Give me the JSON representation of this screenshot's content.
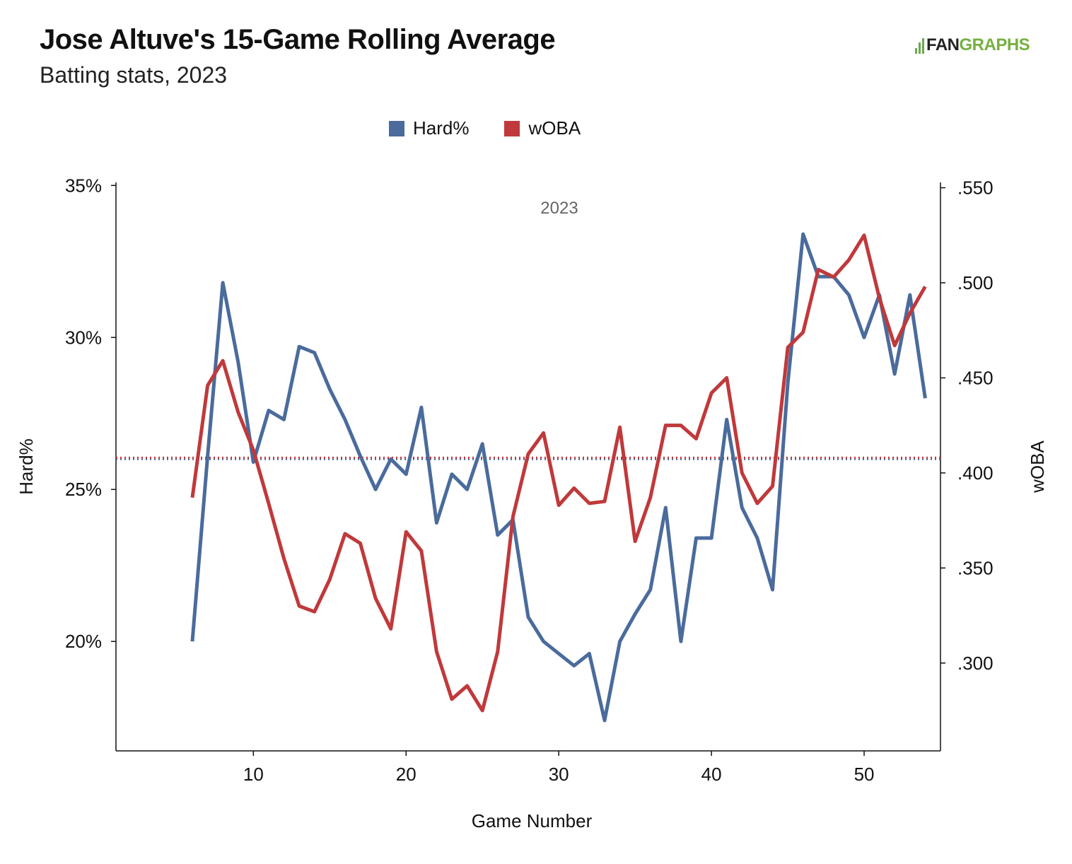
{
  "header": {
    "title": "Jose Altuve's 15-Game Rolling Average",
    "subtitle": "Batting stats, 2023",
    "logo_left": "FAN",
    "logo_right": "GRAPHS"
  },
  "chart_data": {
    "type": "line",
    "title": "Jose Altuve's 15-Game Rolling Average",
    "subtitle": "Batting stats, 2023",
    "annotation": "2023",
    "xlabel": "Game Number",
    "ylabel_left": "Hard%",
    "ylabel_right": "wOBA",
    "xlim": [
      1,
      55
    ],
    "ylim_left": [
      0.164,
      0.351
    ],
    "ylim_right": [
      0.2538,
      0.5528
    ],
    "x_ticks": [
      10,
      20,
      30,
      40,
      50
    ],
    "y_ticks_left": [
      0.2,
      0.25,
      0.3,
      0.35
    ],
    "y_tick_labels_left": [
      "20%",
      "25%",
      "30%",
      "35%"
    ],
    "y_ticks_right": [
      0.3,
      0.35,
      0.4,
      0.45,
      0.5,
      0.55
    ],
    "y_tick_labels_right": [
      ".300",
      ".350",
      ".400",
      ".450",
      ".500",
      ".550"
    ],
    "legend_position": "top-center",
    "grid": false,
    "x": [
      6,
      7,
      8,
      9,
      10,
      11,
      12,
      13,
      14,
      15,
      16,
      17,
      18,
      19,
      20,
      21,
      22,
      23,
      24,
      25,
      26,
      27,
      28,
      29,
      30,
      31,
      32,
      33,
      34,
      35,
      36,
      37,
      38,
      39,
      40,
      41,
      42,
      43,
      44,
      45,
      46,
      47,
      48,
      49,
      50,
      51,
      52,
      53,
      54
    ],
    "series": [
      {
        "name": "Hard%",
        "axis": "left",
        "color": "#4a6b9c",
        "values": [
          0.2,
          0.261,
          0.318,
          0.292,
          0.259,
          0.276,
          0.273,
          0.297,
          0.295,
          0.283,
          0.273,
          0.261,
          0.25,
          0.26,
          0.255,
          0.277,
          0.239,
          0.255,
          0.25,
          0.265,
          0.235,
          0.24,
          0.208,
          0.2,
          0.196,
          0.192,
          0.196,
          0.174,
          0.2,
          0.209,
          0.217,
          0.244,
          0.2,
          0.234,
          0.234,
          0.273,
          0.244,
          0.234,
          0.217,
          0.285,
          0.334,
          0.32,
          0.32,
          0.314,
          0.3,
          0.314,
          0.288,
          0.314,
          0.28
        ],
        "average": 0.26
      },
      {
        "name": "wOBA",
        "axis": "right",
        "color": "#c0393b",
        "values": [
          0.387,
          0.446,
          0.459,
          0.432,
          0.412,
          0.384,
          0.355,
          0.33,
          0.327,
          0.344,
          0.368,
          0.363,
          0.334,
          0.318,
          0.369,
          0.359,
          0.306,
          0.281,
          0.288,
          0.275,
          0.306,
          0.377,
          0.41,
          0.421,
          0.383,
          0.392,
          0.384,
          0.385,
          0.424,
          0.364,
          0.387,
          0.425,
          0.425,
          0.418,
          0.442,
          0.45,
          0.4,
          0.384,
          0.393,
          0.466,
          0.474,
          0.507,
          0.503,
          0.512,
          0.525,
          0.492,
          0.467,
          0.484,
          0.498
        ],
        "average": 0.408
      }
    ]
  }
}
